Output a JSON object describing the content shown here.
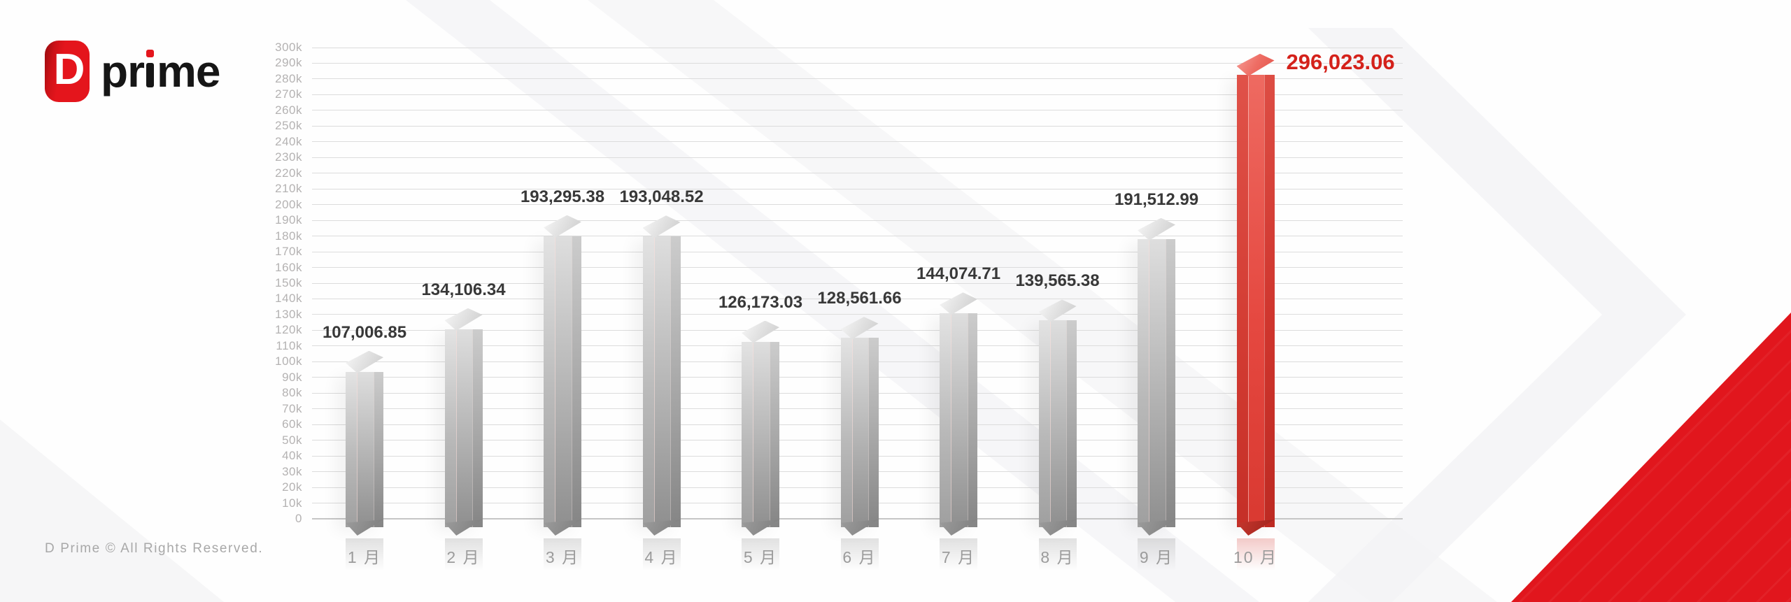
{
  "brand": {
    "icon_letter": "D",
    "name_pre": "pr",
    "name_post": "me"
  },
  "footer": {
    "copyright": "D Prime © All Rights Reserved."
  },
  "colors": {
    "brand_red": "#e4151c",
    "bar_red": "#e54840",
    "bar_gray": "#b3b3b3",
    "highlight_label_red": "#d4211a",
    "value_label_dark": "#383838",
    "axis_text_gray": "#b4b2b2",
    "corner_triangle_red": "#e1161d"
  },
  "chart_data": {
    "type": "bar",
    "title": "",
    "xlabel": "",
    "ylabel": "",
    "grid": true,
    "legend": false,
    "categories": [
      "1 月",
      "2 月",
      "3 月",
      "4 月",
      "5 月",
      "6 月",
      "7 月",
      "8 月",
      "9 月",
      "10 月"
    ],
    "values": [
      107006.85,
      134106.34,
      193295.38,
      193048.52,
      126173.03,
      128561.66,
      144074.71,
      139565.38,
      191512.99,
      296023.06
    ],
    "value_labels": [
      "107,006.85",
      "134,106.34",
      "193,295.38",
      "193,048.52",
      "126,173.03",
      "128,561.66",
      "144,074.71",
      "139,565.38",
      "191,512.99",
      "296,023.06"
    ],
    "highlight_index": 9,
    "ylim": [
      0,
      300000
    ],
    "ytick_step": 10000,
    "ytick_labels": [
      "0",
      "10k",
      "20k",
      "30k",
      "40k",
      "50k",
      "60k",
      "70k",
      "80k",
      "90k",
      "100k",
      "110k",
      "120k",
      "130k",
      "140k",
      "150k",
      "160k",
      "170k",
      "180k",
      "190k",
      "200k",
      "210k",
      "220k",
      "230k",
      "240k",
      "250k",
      "260k",
      "270k",
      "280k",
      "290k",
      "300k"
    ]
  }
}
